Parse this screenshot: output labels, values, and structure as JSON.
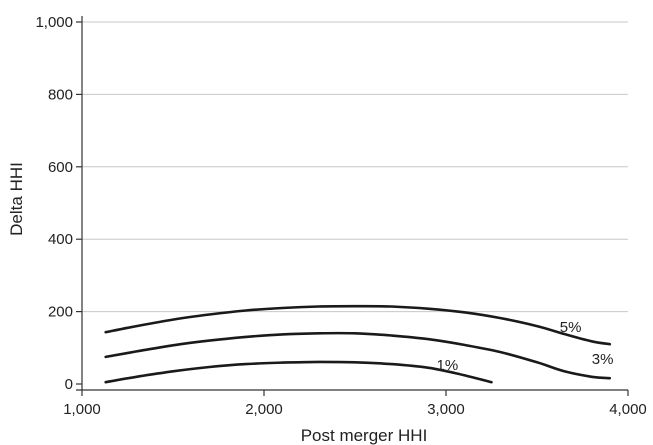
{
  "chart_data": {
    "type": "line",
    "title": "",
    "xlabel": "Post merger HHI",
    "ylabel": "Delta HHI",
    "xlim": [
      1000,
      4000
    ],
    "ylim": [
      0,
      1000
    ],
    "xticks": [
      1000,
      2000,
      3000,
      4000
    ],
    "yticks": [
      0,
      200,
      400,
      600,
      800,
      1000
    ],
    "xtick_labels": [
      "1,000",
      "2,000",
      "3,000",
      "4,000"
    ],
    "ytick_labels": [
      "0",
      "200",
      "400",
      "600",
      "800",
      "1,000"
    ],
    "grid": {
      "horizontal": true,
      "vertical": false
    },
    "legend": "none (series labelled inline)",
    "line_color": "#1a1a1a",
    "grid_color": "#c8c8c8",
    "series": [
      {
        "name": "1%",
        "points": [
          [
            1130,
            5
          ],
          [
            1300,
            20
          ],
          [
            1500,
            35
          ],
          [
            1700,
            47
          ],
          [
            1900,
            55
          ],
          [
            2100,
            59
          ],
          [
            2300,
            61
          ],
          [
            2500,
            60
          ],
          [
            2700,
            55
          ],
          [
            2900,
            45
          ],
          [
            3050,
            30
          ],
          [
            3150,
            18
          ],
          [
            3250,
            5
          ]
        ]
      },
      {
        "name": "3%",
        "points": [
          [
            1130,
            75
          ],
          [
            1300,
            90
          ],
          [
            1500,
            107
          ],
          [
            1700,
            120
          ],
          [
            1900,
            130
          ],
          [
            2100,
            137
          ],
          [
            2300,
            140
          ],
          [
            2500,
            140
          ],
          [
            2700,
            134
          ],
          [
            2900,
            124
          ],
          [
            3100,
            108
          ],
          [
            3300,
            88
          ],
          [
            3500,
            60
          ],
          [
            3650,
            35
          ],
          [
            3800,
            20
          ],
          [
            3900,
            16
          ]
        ]
      },
      {
        "name": "5%",
        "points": [
          [
            1130,
            143
          ],
          [
            1300,
            160
          ],
          [
            1500,
            178
          ],
          [
            1700,
            192
          ],
          [
            1900,
            203
          ],
          [
            2100,
            210
          ],
          [
            2300,
            214
          ],
          [
            2500,
            215
          ],
          [
            2700,
            214
          ],
          [
            2900,
            208
          ],
          [
            3100,
            198
          ],
          [
            3300,
            182
          ],
          [
            3500,
            160
          ],
          [
            3650,
            138
          ],
          [
            3800,
            118
          ],
          [
            3900,
            110
          ]
        ]
      }
    ]
  }
}
